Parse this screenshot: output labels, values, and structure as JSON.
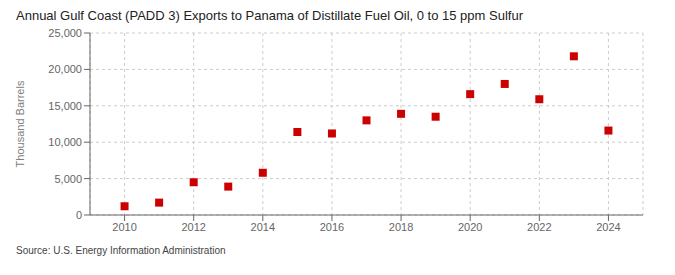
{
  "chart_data": {
    "type": "scatter",
    "title": "Annual Gulf Coast (PADD 3) Exports to Panama of Distillate Fuel Oil, 0 to 15 ppm Sulfur",
    "ylabel": "Thousand Barrels",
    "source": "Source: U.S. Energy Information Administration",
    "x": [
      2010,
      2011,
      2012,
      2013,
      2014,
      2015,
      2016,
      2017,
      2018,
      2019,
      2020,
      2021,
      2022,
      2023,
      2024
    ],
    "values": [
      1200,
      1700,
      4500,
      3900,
      5800,
      11400,
      11200,
      13000,
      13900,
      13500,
      16600,
      18000,
      15900,
      21800,
      11600
    ],
    "color": "#CC0000",
    "marker": "square",
    "xlim": [
      2009,
      2025
    ],
    "xticks": [
      2010,
      2012,
      2014,
      2016,
      2018,
      2020,
      2022,
      2024
    ],
    "ylim": [
      0,
      25000
    ],
    "yticks": [
      0,
      {
        "value": 5000,
        "label": "5,000"
      },
      {
        "value": 10000,
        "label": "10,000"
      },
      {
        "value": 15000,
        "label": "15,000"
      },
      {
        "value": 20000,
        "label": "20,000"
      },
      {
        "value": 25000,
        "label": "25,000"
      }
    ],
    "grid": true
  }
}
